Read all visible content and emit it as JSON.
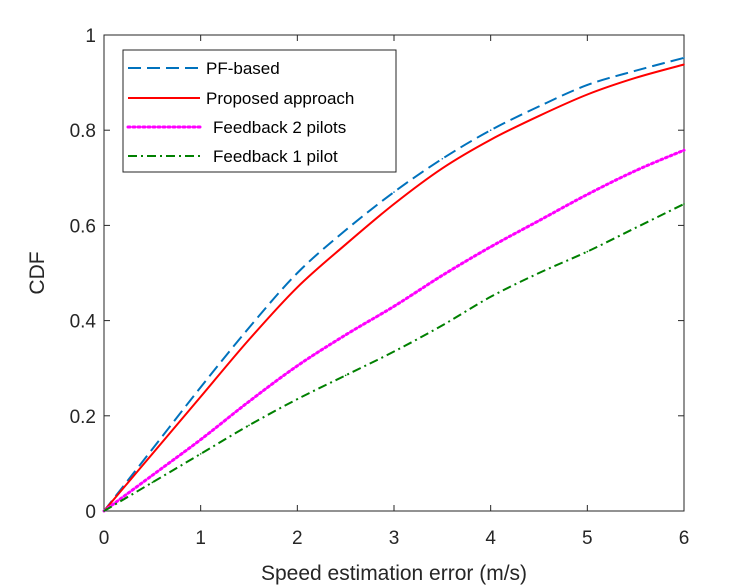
{
  "chart_data": {
    "type": "line",
    "title": "",
    "xlabel": "Speed estimation error (m/s)",
    "ylabel": "CDF",
    "xlim": [
      0,
      6
    ],
    "ylim": [
      0,
      1
    ],
    "xticks": [
      0,
      1,
      2,
      3,
      4,
      5,
      6
    ],
    "xtick_labels": [
      "0",
      "1",
      "2",
      "3",
      "4",
      "5",
      "6"
    ],
    "yticks": [
      0,
      0.2,
      0.4,
      0.6,
      0.8,
      1
    ],
    "ytick_labels": [
      "0",
      "0.2",
      "0.4",
      "0.6",
      "0.8",
      "1"
    ],
    "grid": false,
    "legend_position": "top-left",
    "series": [
      {
        "name": "PF-based",
        "color": "#0072BD",
        "style": "dashed",
        "x": [
          0,
          0.5,
          1,
          1.5,
          2,
          2.5,
          3,
          3.5,
          4,
          4.5,
          5,
          5.5,
          6
        ],
        "y": [
          0,
          0.13,
          0.26,
          0.385,
          0.5,
          0.59,
          0.67,
          0.74,
          0.8,
          0.85,
          0.895,
          0.925,
          0.952
        ]
      },
      {
        "name": "Proposed approach",
        "color": "#FF0000",
        "style": "solid",
        "x": [
          0,
          0.5,
          1,
          1.5,
          2,
          2.5,
          3,
          3.5,
          4,
          4.5,
          5,
          5.5,
          6
        ],
        "y": [
          0,
          0.12,
          0.24,
          0.36,
          0.47,
          0.56,
          0.645,
          0.72,
          0.78,
          0.83,
          0.875,
          0.91,
          0.938
        ]
      },
      {
        "name": "Feedback 2 pilots",
        "color": "#FF00FF",
        "style": "dotted",
        "x": [
          0,
          0.5,
          1,
          1.5,
          2,
          2.5,
          3,
          3.5,
          4,
          4.5,
          5,
          5.5,
          6
        ],
        "y": [
          0,
          0.075,
          0.15,
          0.23,
          0.305,
          0.37,
          0.43,
          0.495,
          0.555,
          0.61,
          0.665,
          0.715,
          0.758
        ]
      },
      {
        "name": "Feedback 1 pilot",
        "color": "#008000",
        "style": "dashdot",
        "x": [
          0,
          0.5,
          1,
          1.5,
          2,
          2.5,
          3,
          3.5,
          4,
          4.5,
          5,
          5.5,
          6
        ],
        "y": [
          0,
          0.06,
          0.12,
          0.18,
          0.235,
          0.285,
          0.335,
          0.39,
          0.45,
          0.5,
          0.545,
          0.595,
          0.645
        ]
      }
    ]
  }
}
